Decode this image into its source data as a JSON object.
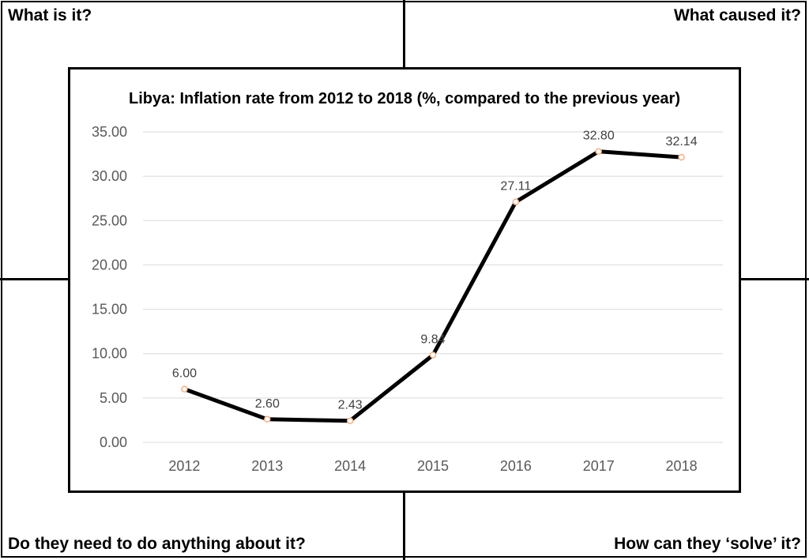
{
  "quadrants": {
    "top_left": "What is it?",
    "top_right": "What caused it?",
    "bottom_left": "Do they need to do anything about it?",
    "bottom_right": "How can they ‘solve’ it?"
  },
  "chart_data": {
    "type": "line",
    "title": "Libya: Inflation rate from 2012 to 2018 (%, compared to the previous year)",
    "xlabel": "",
    "ylabel": "",
    "categories": [
      "2012",
      "2013",
      "2014",
      "2015",
      "2016",
      "2017",
      "2018"
    ],
    "series": [
      {
        "values": [
          6.0,
          2.6,
          2.43,
          9.84,
          27.11,
          32.8,
          32.14
        ],
        "data_labels": [
          "6.00",
          "2.60",
          "2.43",
          "9.84",
          "27.11",
          "32.80",
          "32.14"
        ],
        "color": "#000000"
      }
    ],
    "ylim": [
      0,
      35
    ],
    "yticks": [
      "0.00",
      "5.00",
      "10.00",
      "15.00",
      "20.00",
      "25.00",
      "30.00",
      "35.00"
    ],
    "grid": true,
    "legend": "none",
    "marker_color": "#f4b183",
    "gridline_color": "#d9d9d9"
  }
}
